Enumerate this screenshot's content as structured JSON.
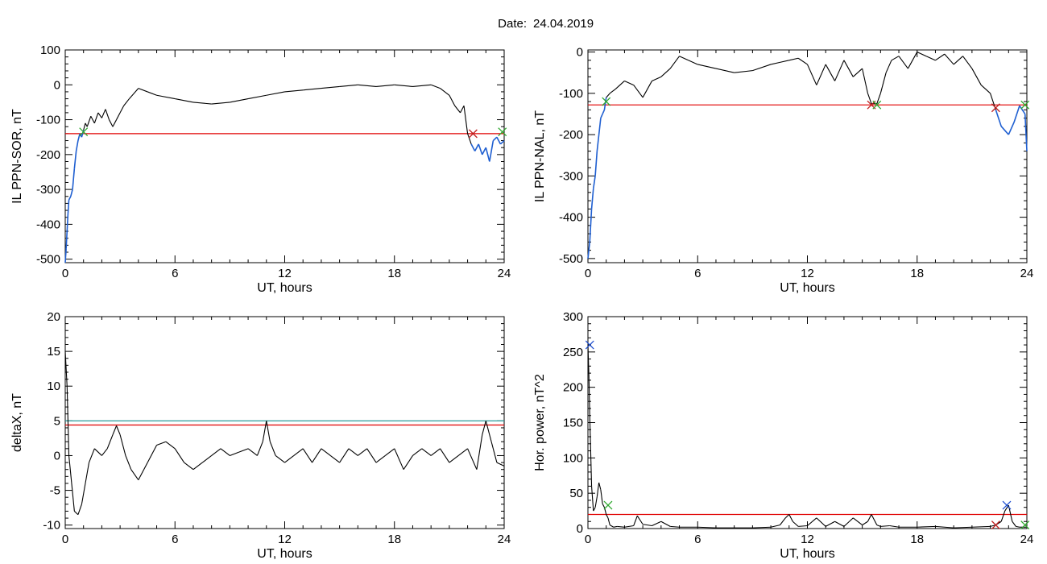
{
  "figure": {
    "date_label": "Date:",
    "date_value": "24.04.2019"
  },
  "colors": {
    "trace": "#000000",
    "below_threshold": "#1f5fd1",
    "threshold": "#e00000",
    "second_threshold": "#2a9a9a",
    "cross_green": "#2ea82e",
    "cross_red": "#c02020",
    "cross_blue": "#2050d0"
  },
  "chart_data": [
    {
      "type": "line",
      "xlabel": "UT, hours",
      "ylabel": "IL PPN-SOR, nT",
      "xlim": [
        0,
        24
      ],
      "ylim": [
        -510,
        100
      ],
      "xticks": [
        0,
        6,
        12,
        18,
        24
      ],
      "yticks": [
        -500,
        -400,
        -300,
        -200,
        -100,
        0,
        100
      ],
      "threshold": -140,
      "series": [
        {
          "x": [
            0,
            0.05,
            0.1,
            0.15,
            0.2,
            0.3,
            0.4,
            0.5,
            0.6,
            0.7,
            0.8,
            0.9,
            1.0,
            1.1,
            1.2,
            1.4,
            1.6,
            1.8,
            2.0,
            2.2,
            2.4,
            2.6,
            2.8,
            3.0,
            3.2,
            3.5,
            4.0,
            4.5,
            5.0,
            6.0,
            7.0,
            8.0,
            9.0,
            10.0,
            11.0,
            12.0,
            13.0,
            14.0,
            15.0,
            16.0,
            17.0,
            18.0,
            19.0,
            20.0,
            20.5,
            21.0,
            21.3,
            21.6,
            21.8,
            22.0,
            22.2,
            22.4,
            22.6,
            22.8,
            23.0,
            23.2,
            23.4,
            23.6,
            23.8,
            24.0
          ],
          "y": [
            -510,
            -470,
            -420,
            -370,
            -330,
            -320,
            -300,
            -240,
            -190,
            -160,
            -140,
            -150,
            -130,
            -110,
            -120,
            -90,
            -110,
            -80,
            -95,
            -70,
            -100,
            -120,
            -100,
            -80,
            -60,
            -40,
            -10,
            -20,
            -30,
            -40,
            -50,
            -55,
            -50,
            -40,
            -30,
            -20,
            -15,
            -10,
            -5,
            0,
            -5,
            0,
            -5,
            0,
            -10,
            -30,
            -60,
            -80,
            -60,
            -140,
            -170,
            -190,
            -170,
            -200,
            -180,
            -220,
            -160,
            -150,
            -170,
            -160
          ]
        }
      ],
      "markers": [
        {
          "x": 1.0,
          "y": -135,
          "color": "green"
        },
        {
          "x": 22.3,
          "y": -140,
          "color": "red"
        },
        {
          "x": 23.9,
          "y": -135,
          "color": "green"
        }
      ]
    },
    {
      "type": "line",
      "xlabel": "UT, hours",
      "ylabel": "IL PPN-NAL, nT",
      "xlim": [
        0,
        24
      ],
      "ylim": [
        -510,
        5
      ],
      "xticks": [
        0,
        6,
        12,
        18,
        24
      ],
      "yticks": [
        -500,
        -400,
        -300,
        -200,
        -100,
        0
      ],
      "threshold": -128,
      "series": [
        {
          "x": [
            0,
            0.1,
            0.2,
            0.3,
            0.4,
            0.5,
            0.6,
            0.7,
            0.8,
            0.9,
            1.0,
            1.2,
            1.5,
            2.0,
            2.5,
            3.0,
            3.5,
            4.0,
            4.5,
            5.0,
            5.5,
            6.0,
            7.0,
            8.0,
            9.0,
            10.0,
            10.5,
            11.0,
            11.5,
            12.0,
            12.5,
            13.0,
            13.5,
            14.0,
            14.5,
            15.0,
            15.3,
            15.5,
            15.8,
            16.0,
            16.3,
            16.6,
            17.0,
            17.5,
            18.0,
            18.5,
            19.0,
            19.5,
            20.0,
            20.5,
            21.0,
            21.5,
            22.0,
            22.3,
            22.6,
            23.0,
            23.3,
            23.6,
            23.9,
            24.0
          ],
          "y": [
            -500,
            -460,
            -380,
            -330,
            -300,
            -240,
            -200,
            -160,
            -150,
            -140,
            -110,
            -100,
            -90,
            -70,
            -80,
            -110,
            -70,
            -60,
            -40,
            -10,
            -20,
            -30,
            -40,
            -50,
            -45,
            -30,
            -25,
            -20,
            -15,
            -30,
            -80,
            -30,
            -70,
            -20,
            -60,
            -40,
            -100,
            -125,
            -125,
            -100,
            -50,
            -20,
            -10,
            -40,
            0,
            -10,
            -20,
            -5,
            -30,
            -10,
            -40,
            -80,
            -100,
            -140,
            -180,
            -200,
            -170,
            -130,
            -150,
            -240
          ]
        }
      ],
      "markers": [
        {
          "x": 1.0,
          "y": -120,
          "color": "green"
        },
        {
          "x": 15.5,
          "y": -128,
          "color": "red"
        },
        {
          "x": 15.8,
          "y": -128,
          "color": "green"
        },
        {
          "x": 22.3,
          "y": -135,
          "color": "red"
        },
        {
          "x": 23.9,
          "y": -128,
          "color": "green"
        }
      ]
    },
    {
      "type": "line",
      "xlabel": "UT, hours",
      "ylabel": "deltaX, nT",
      "xlim": [
        0,
        24
      ],
      "ylim": [
        -10.5,
        20
      ],
      "xticks": [
        0,
        6,
        12,
        18,
        24
      ],
      "yticks": [
        -10,
        -5,
        0,
        5,
        10,
        15,
        20
      ],
      "threshold": 4.4,
      "second_threshold": 5.0,
      "series": [
        {
          "x": [
            0,
            0.1,
            0.2,
            0.35,
            0.5,
            0.7,
            0.9,
            1.1,
            1.3,
            1.6,
            2.0,
            2.3,
            2.6,
            2.8,
            3.0,
            3.3,
            3.6,
            4.0,
            4.5,
            5.0,
            5.5,
            6.0,
            6.5,
            7.0,
            7.5,
            8.0,
            8.5,
            9.0,
            9.5,
            10.0,
            10.5,
            10.8,
            11.0,
            11.2,
            11.5,
            12.0,
            12.5,
            13.0,
            13.5,
            14.0,
            14.5,
            15.0,
            15.5,
            16.0,
            16.5,
            17.0,
            17.5,
            18.0,
            18.5,
            19.0,
            19.5,
            20.0,
            20.5,
            21.0,
            21.5,
            22.0,
            22.5,
            22.8,
            23.0,
            23.3,
            23.6,
            24.0
          ],
          "y": [
            15,
            10,
            0,
            -4,
            -8,
            -8.5,
            -7,
            -4,
            -1,
            1,
            0,
            1,
            3,
            4.3,
            3,
            0,
            -2,
            -3.5,
            -1,
            1.5,
            2,
            1,
            -1,
            -2,
            -1,
            0,
            1,
            0,
            0.5,
            1,
            0,
            2,
            5,
            2,
            0,
            -1,
            0,
            1,
            -1,
            1,
            0,
            -1,
            1,
            0,
            1,
            -1,
            0,
            1,
            -2,
            0,
            1,
            0,
            1,
            -1,
            0,
            1,
            -2,
            3,
            5,
            2,
            -1,
            -1.5
          ]
        }
      ],
      "markers": []
    },
    {
      "type": "line",
      "xlabel": "UT, hours",
      "ylabel": "Hor. power, nT^2",
      "xlim": [
        0,
        24
      ],
      "ylim": [
        0,
        300
      ],
      "xticks": [
        0,
        6,
        12,
        18,
        24
      ],
      "yticks": [
        0,
        50,
        100,
        150,
        200,
        250,
        300
      ],
      "threshold": 20,
      "series": [
        {
          "x": [
            0,
            0.05,
            0.1,
            0.15,
            0.2,
            0.3,
            0.4,
            0.5,
            0.6,
            0.7,
            0.8,
            0.9,
            1.0,
            1.1,
            1.2,
            1.4,
            1.6,
            2.0,
            2.5,
            2.7,
            3.0,
            3.5,
            4.0,
            4.5,
            5.0,
            6.0,
            7.0,
            8.0,
            9.0,
            10.0,
            10.5,
            10.8,
            11.0,
            11.2,
            11.5,
            12.0,
            12.5,
            13.0,
            13.5,
            14.0,
            14.5,
            15.0,
            15.3,
            15.5,
            15.8,
            16.0,
            16.5,
            17.0,
            18.0,
            19.0,
            20.0,
            21.0,
            22.0,
            22.3,
            22.6,
            22.8,
            23.0,
            23.2,
            23.4,
            23.6,
            24.0
          ],
          "y": [
            260,
            220,
            160,
            110,
            60,
            25,
            30,
            45,
            65,
            55,
            35,
            30,
            20,
            15,
            5,
            2,
            3,
            2,
            4,
            18,
            6,
            4,
            10,
            3,
            2,
            2,
            1,
            1,
            1,
            2,
            5,
            15,
            20,
            10,
            3,
            4,
            15,
            3,
            10,
            3,
            15,
            5,
            10,
            20,
            5,
            3,
            4,
            2,
            2,
            3,
            1,
            2,
            3,
            5,
            10,
            25,
            33,
            10,
            3,
            2,
            2
          ]
        }
      ],
      "markers": [
        {
          "x": 0.1,
          "y": 260,
          "color": "blue"
        },
        {
          "x": 1.1,
          "y": 33,
          "color": "green"
        },
        {
          "x": 22.3,
          "y": 5,
          "color": "red"
        },
        {
          "x": 22.9,
          "y": 33,
          "color": "blue"
        },
        {
          "x": 23.9,
          "y": 5,
          "color": "green"
        }
      ]
    }
  ]
}
